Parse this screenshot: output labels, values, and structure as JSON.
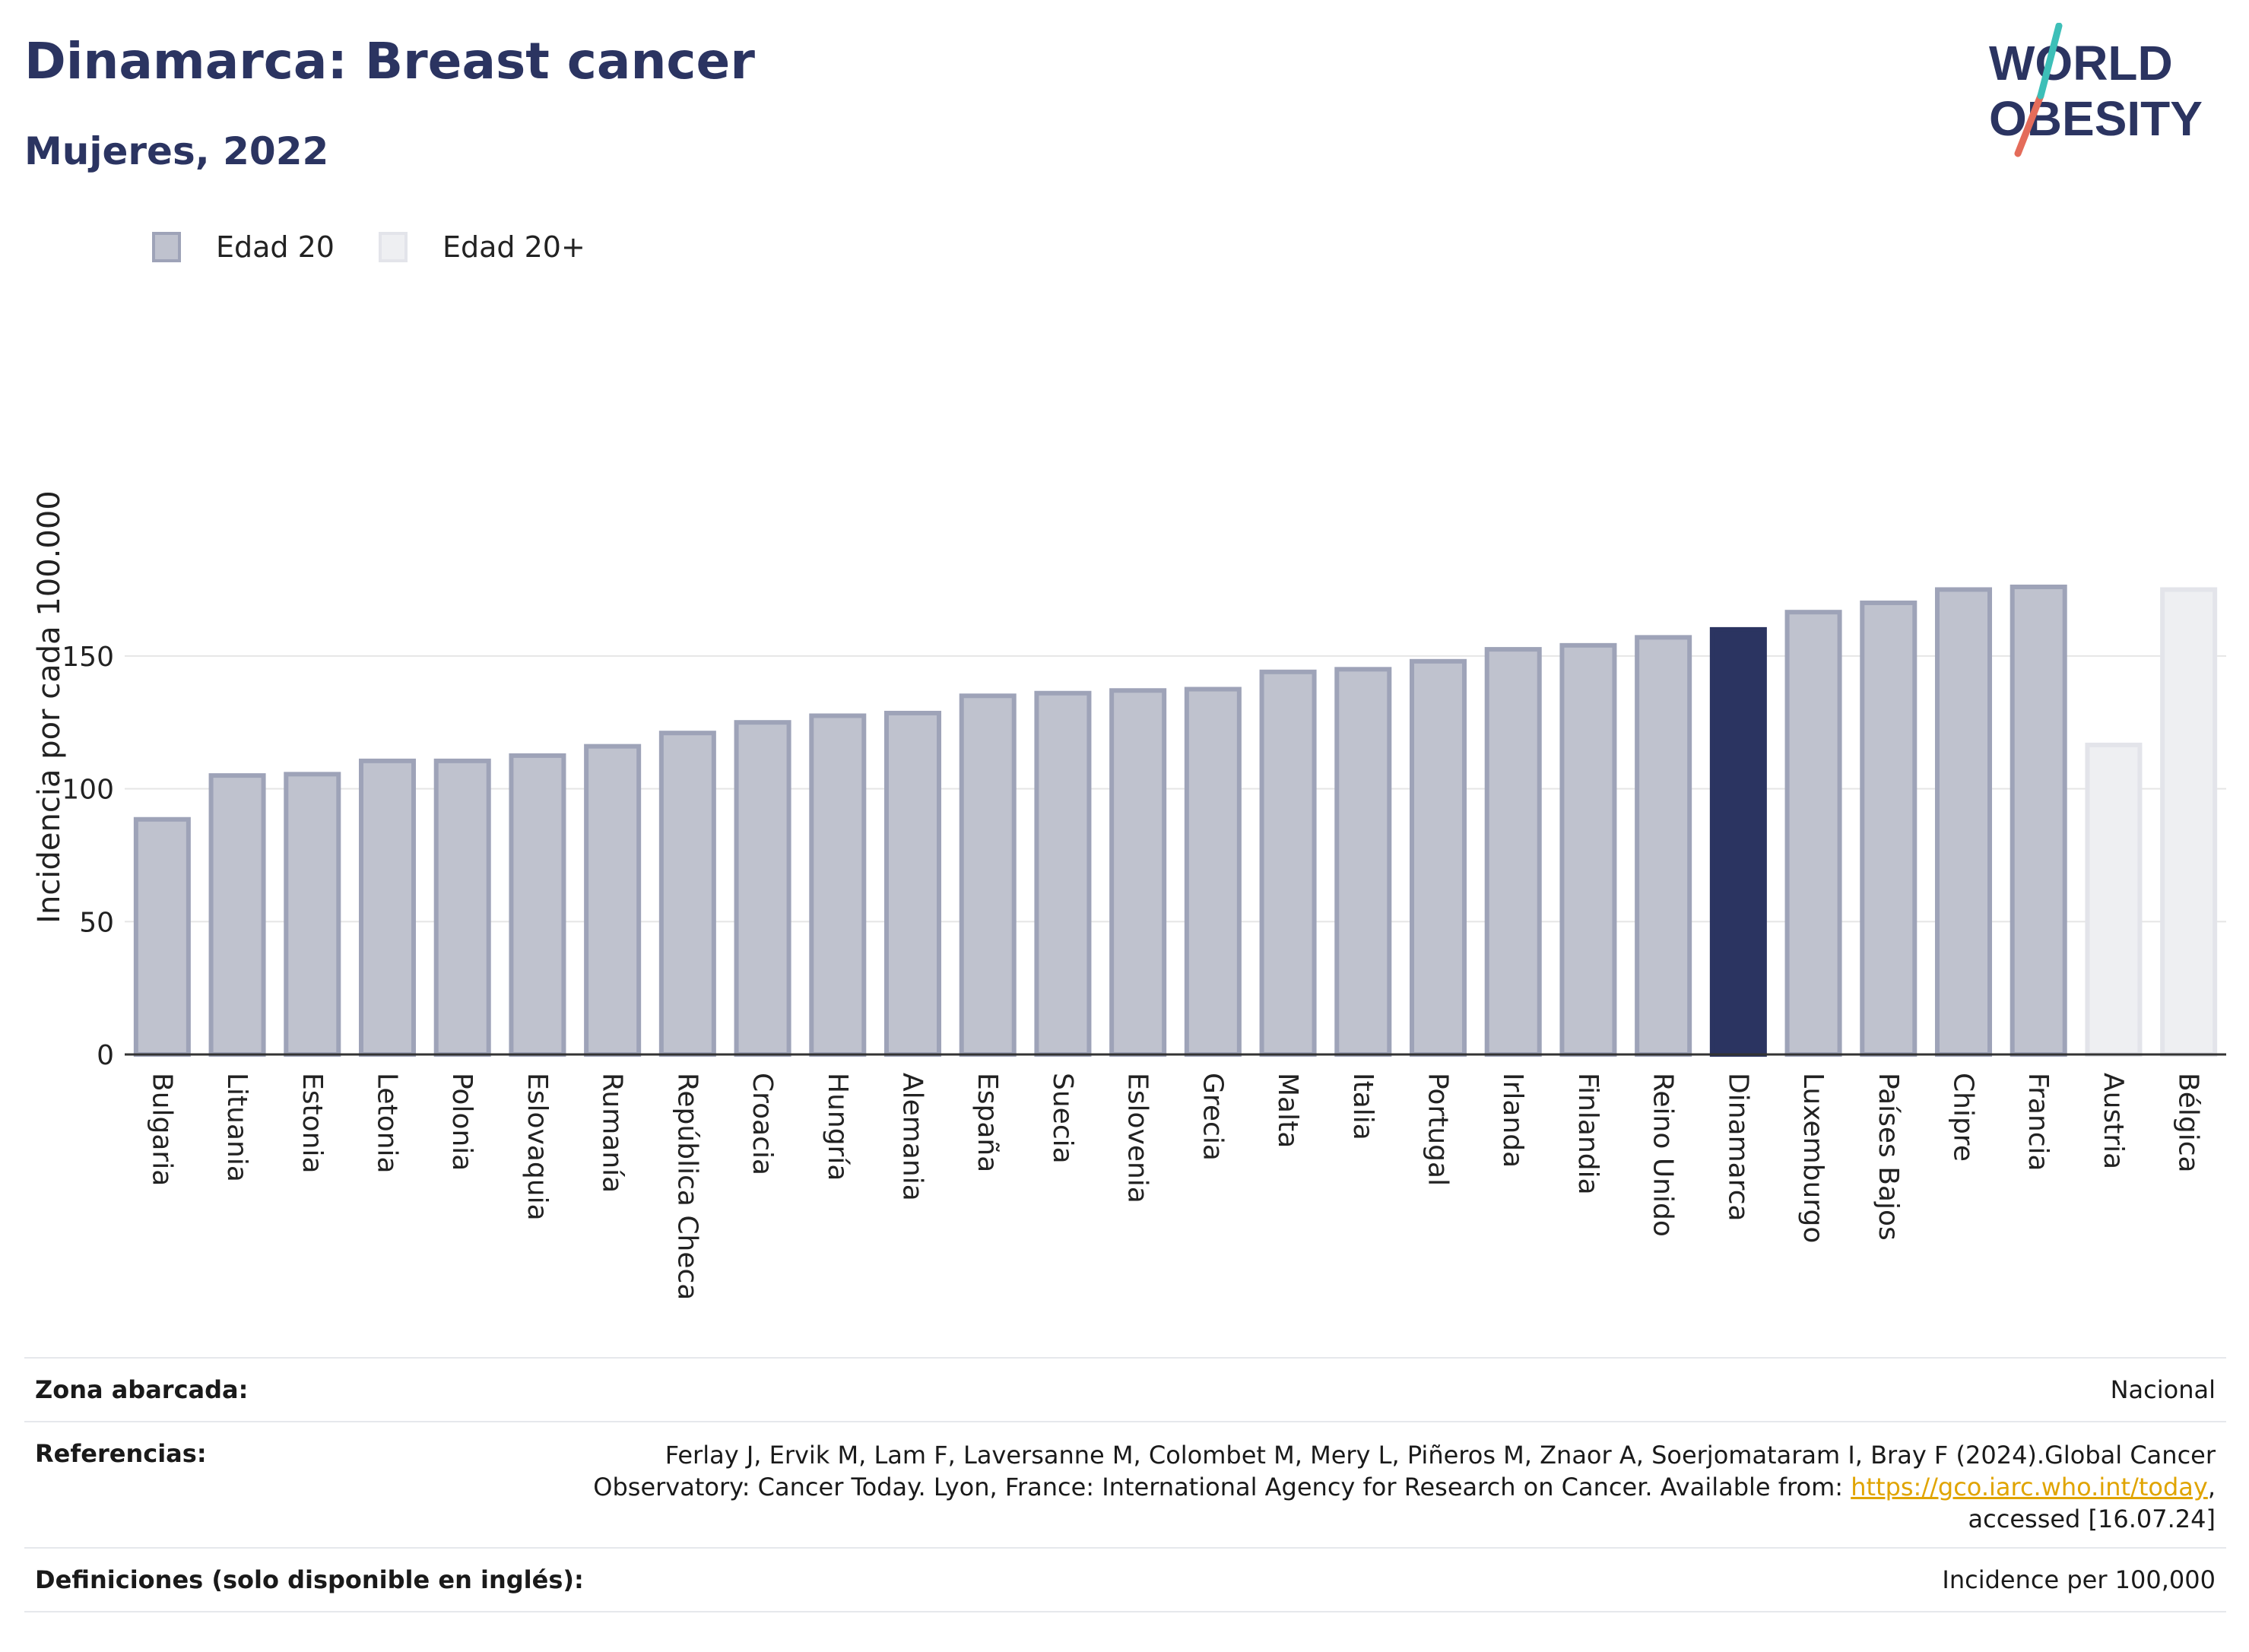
{
  "header": {
    "title": "Dinamarca: Breast cancer",
    "subtitle": "Mujeres, 2022"
  },
  "logo": {
    "line1": "WORLD",
    "line2": "OBESITY"
  },
  "legend": [
    {
      "label": "Edad 20",
      "color": "#bfc2ce"
    },
    {
      "label": "Edad 20+",
      "color": "#eeeff2"
    }
  ],
  "chart_data": {
    "type": "bar",
    "ylabel": "Incidencia por cada 100.000",
    "ylim": [
      0,
      180
    ],
    "yticks": [
      0,
      50,
      100,
      150
    ],
    "grid": true,
    "legend_position": "top-left",
    "categories": [
      "Bulgaria",
      "Lituania",
      "Estonia",
      "Letonia",
      "Polonia",
      "Eslovaquia",
      "Rumanía",
      "República Checa",
      "Croacia",
      "Hungría",
      "Alemania",
      "España",
      "Suecia",
      "Eslovenia",
      "Grecia",
      "Malta",
      "Italia",
      "Portugal",
      "Irlanda",
      "Finlandia",
      "Reino Unido",
      "Dinamarca",
      "Luxemburgo",
      "Países Bajos",
      "Chipre",
      "Francia",
      "Austria",
      "Bélgica"
    ],
    "values": [
      88.5,
      105,
      105.5,
      110.5,
      110.5,
      112.5,
      116,
      121,
      125,
      127.5,
      128.5,
      135,
      136,
      137,
      137.5,
      144,
      145,
      148,
      152.5,
      154,
      157,
      160,
      166.5,
      170,
      175,
      176,
      116.5,
      175
    ],
    "groups": [
      "Edad 20",
      "Edad 20",
      "Edad 20",
      "Edad 20",
      "Edad 20",
      "Edad 20",
      "Edad 20",
      "Edad 20",
      "Edad 20",
      "Edad 20",
      "Edad 20",
      "Edad 20",
      "Edad 20",
      "Edad 20",
      "Edad 20",
      "Edad 20",
      "Edad 20",
      "Edad 20",
      "Edad 20",
      "Edad 20",
      "Edad 20",
      "Edad 20",
      "Edad 20",
      "Edad 20",
      "Edad 20",
      "Edad 20",
      "Edad 20+",
      "Edad 20+"
    ],
    "highlight": "Dinamarca",
    "colors": {
      "normal_fill": "#bfc2ce",
      "normal_stroke": "#9ea3b8",
      "highlight_fill": "#2b3461",
      "plus_fill": "#eeeff2",
      "plus_stroke": "#e3e4ea"
    }
  },
  "footer": {
    "coverage_label": "Zona abarcada:",
    "coverage_value": "Nacional",
    "references_label": "Referencias:",
    "references_line1": "Ferlay J, Ervik M, Lam F, Laversanne M, Colombet M, Mery L, Piñeros M, Znaor A, Soerjomataram I, Bray F (2024).Global Cancer",
    "references_line2_pre": "Observatory: Cancer Today. Lyon, France: International Agency for Research on Cancer. Available from: ",
    "references_link": "https://gco.iarc.who.int/today",
    "references_line2_post": ",",
    "references_line3": "accessed [16.07.24]",
    "definitions_label": "Definiciones (solo disponible en inglés):",
    "definitions_value": "Incidence per 100,000"
  }
}
